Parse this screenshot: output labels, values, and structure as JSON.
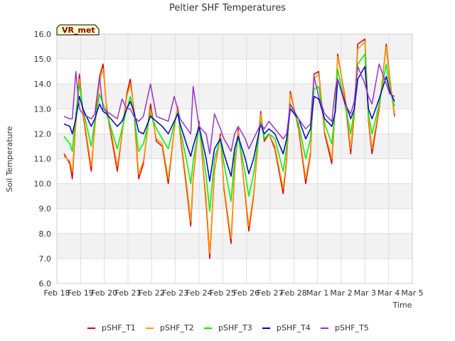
{
  "chart_data": {
    "type": "line",
    "title": "Peltier SHF Temperatures",
    "xlabel": "Time",
    "ylabel": "Soil Temperature",
    "badge": "VR_met",
    "xlim": [
      0,
      15
    ],
    "ylim": [
      6.0,
      16.0
    ],
    "x_ticks": [
      {
        "v": 0,
        "label": "Feb 18"
      },
      {
        "v": 1,
        "label": "Feb 19"
      },
      {
        "v": 2,
        "label": "Feb 20"
      },
      {
        "v": 3,
        "label": "Feb 21"
      },
      {
        "v": 4,
        "label": "Feb 22"
      },
      {
        "v": 5,
        "label": "Feb 23"
      },
      {
        "v": 6,
        "label": "Feb 24"
      },
      {
        "v": 7,
        "label": "Feb 25"
      },
      {
        "v": 8,
        "label": "Feb 26"
      },
      {
        "v": 9,
        "label": "Feb 27"
      },
      {
        "v": 10,
        "label": "Feb 28"
      },
      {
        "v": 11,
        "label": "Mar 1"
      },
      {
        "v": 12,
        "label": "Mar 2"
      },
      {
        "v": 13,
        "label": "Mar 3"
      },
      {
        "v": 14,
        "label": "Mar 4"
      },
      {
        "v": 15,
        "label": "Mar 5"
      }
    ],
    "y_ticks": [
      6.0,
      7.0,
      8.0,
      9.0,
      10.0,
      11.0,
      12.0,
      13.0,
      14.0,
      15.0,
      16.0
    ],
    "y_tick_labels": [
      "6.0",
      "7.0",
      "8.0",
      "9.0",
      "10.0",
      "11.0",
      "12.0",
      "13.0",
      "14.0",
      "15.0",
      "16.0"
    ],
    "grid": true,
    "legend_position": "bottom",
    "series": [
      {
        "name": "pSHF_T1",
        "color": "#dd0000",
        "x": [
          0.3,
          0.55,
          0.65,
          0.8,
          0.95,
          1.1,
          1.45,
          1.6,
          1.8,
          1.95,
          2.1,
          2.55,
          2.75,
          2.95,
          3.1,
          3.25,
          3.45,
          3.65,
          3.95,
          4.2,
          4.45,
          4.7,
          4.95,
          5.1,
          5.2,
          5.5,
          5.65,
          5.75,
          6.0,
          6.3,
          6.45,
          6.65,
          6.9,
          7.05,
          7.35,
          7.5,
          7.65,
          7.95,
          8.1,
          8.3,
          8.6,
          8.75,
          8.95,
          9.2,
          9.55,
          9.7,
          9.85,
          10.2,
          10.5,
          10.7,
          10.85,
          11.05,
          11.3,
          11.6,
          11.75,
          11.85,
          12.15,
          12.4,
          12.55,
          12.7,
          13.0,
          13.15,
          13.3,
          13.6,
          13.9,
          14.05,
          14.25
        ],
        "y": [
          11.2,
          10.8,
          10.2,
          12.5,
          14.4,
          12.8,
          10.5,
          12.3,
          14.3,
          14.8,
          13.0,
          10.5,
          12.0,
          13.6,
          14.2,
          13.0,
          10.2,
          10.8,
          13.2,
          11.7,
          11.5,
          10.0,
          12.2,
          13.1,
          12.0,
          9.6,
          8.3,
          10.2,
          12.5,
          9.2,
          7.0,
          10.5,
          12.0,
          9.8,
          7.6,
          10.5,
          12.2,
          9.5,
          8.1,
          9.5,
          12.9,
          11.7,
          12.0,
          11.4,
          9.6,
          11.0,
          13.7,
          12.2,
          10.0,
          11.2,
          14.4,
          14.5,
          12.0,
          10.8,
          13.2,
          15.2,
          13.5,
          11.2,
          12.8,
          15.6,
          15.8,
          12.5,
          11.2,
          13.0,
          15.6,
          14.2,
          12.7
        ]
      },
      {
        "name": "pSHF_T2",
        "color": "#ff9900",
        "x": [
          0.3,
          0.55,
          0.65,
          0.8,
          0.95,
          1.1,
          1.45,
          1.6,
          1.8,
          1.95,
          2.1,
          2.55,
          2.75,
          2.95,
          3.1,
          3.25,
          3.45,
          3.65,
          3.95,
          4.2,
          4.45,
          4.7,
          4.95,
          5.1,
          5.2,
          5.5,
          5.65,
          5.75,
          6.0,
          6.3,
          6.45,
          6.65,
          6.9,
          7.05,
          7.35,
          7.5,
          7.65,
          7.95,
          8.1,
          8.3,
          8.6,
          8.75,
          8.95,
          9.2,
          9.55,
          9.7,
          9.85,
          10.2,
          10.5,
          10.7,
          10.85,
          11.05,
          11.3,
          11.6,
          11.75,
          11.85,
          12.15,
          12.4,
          12.55,
          12.7,
          13.0,
          13.15,
          13.3,
          13.6,
          13.9,
          14.05,
          14.25
        ],
        "y": [
          11.1,
          10.9,
          10.5,
          12.4,
          14.2,
          12.9,
          10.7,
          12.2,
          14.1,
          14.6,
          13.1,
          10.7,
          12.0,
          13.5,
          14.0,
          13.1,
          10.4,
          10.9,
          13.0,
          11.8,
          11.6,
          10.2,
          12.2,
          13.1,
          12.1,
          9.8,
          8.5,
          10.3,
          12.4,
          9.4,
          7.2,
          10.5,
          11.9,
          9.9,
          7.8,
          10.5,
          12.1,
          9.6,
          8.3,
          9.6,
          12.8,
          11.8,
          12.0,
          11.5,
          9.8,
          11.1,
          13.6,
          12.3,
          10.2,
          11.3,
          14.2,
          14.4,
          12.1,
          11.0,
          13.2,
          15.1,
          13.6,
          11.4,
          12.9,
          15.4,
          15.7,
          12.6,
          11.4,
          13.1,
          15.5,
          14.1,
          12.8
        ]
      },
      {
        "name": "pSHF_T3",
        "color": "#00ee00",
        "x": [
          0.3,
          0.55,
          0.65,
          0.8,
          0.95,
          1.1,
          1.45,
          1.6,
          1.8,
          1.95,
          2.1,
          2.55,
          2.75,
          2.95,
          3.1,
          3.25,
          3.45,
          3.65,
          3.95,
          4.2,
          4.45,
          4.7,
          4.95,
          5.1,
          5.2,
          5.5,
          5.65,
          5.75,
          6.0,
          6.3,
          6.45,
          6.65,
          6.9,
          7.05,
          7.35,
          7.5,
          7.65,
          7.95,
          8.1,
          8.3,
          8.6,
          8.75,
          8.95,
          9.2,
          9.55,
          9.7,
          9.85,
          10.2,
          10.5,
          10.7,
          10.85,
          11.05,
          11.3,
          11.6,
          11.75,
          11.85,
          12.15,
          12.4,
          12.55,
          12.7,
          13.0,
          13.15,
          13.3,
          13.6,
          13.9,
          14.05,
          14.25
        ],
        "y": [
          11.9,
          11.6,
          11.3,
          12.8,
          14.0,
          13.0,
          11.5,
          12.5,
          13.6,
          13.2,
          12.8,
          11.4,
          12.2,
          13.0,
          13.5,
          12.8,
          11.3,
          11.6,
          12.8,
          12.2,
          11.8,
          11.4,
          12.4,
          12.9,
          12.2,
          10.8,
          10.0,
          10.9,
          12.3,
          10.3,
          8.9,
          11.0,
          11.8,
          10.8,
          9.3,
          11.0,
          11.9,
          10.4,
          9.5,
          10.4,
          12.5,
          11.8,
          12.0,
          11.8,
          10.5,
          11.5,
          13.2,
          12.4,
          11.0,
          11.8,
          13.8,
          13.9,
          12.4,
          11.6,
          13.0,
          14.6,
          13.2,
          12.0,
          13.0,
          14.8,
          15.2,
          12.8,
          12.0,
          13.2,
          14.8,
          13.8,
          13.1
        ]
      },
      {
        "name": "pSHF_T4",
        "color": "#0000cc",
        "x": [
          0.3,
          0.55,
          0.65,
          0.8,
          0.95,
          1.1,
          1.45,
          1.6,
          1.8,
          1.95,
          2.1,
          2.55,
          2.75,
          2.95,
          3.1,
          3.25,
          3.45,
          3.65,
          3.95,
          4.2,
          4.45,
          4.7,
          4.95,
          5.1,
          5.2,
          5.5,
          5.65,
          5.75,
          6.0,
          6.3,
          6.45,
          6.65,
          6.9,
          7.05,
          7.35,
          7.5,
          7.65,
          7.95,
          8.1,
          8.3,
          8.6,
          8.75,
          8.95,
          9.2,
          9.55,
          9.7,
          9.85,
          10.2,
          10.5,
          10.7,
          10.85,
          11.05,
          11.3,
          11.6,
          11.75,
          11.85,
          12.15,
          12.4,
          12.55,
          12.7,
          13.0,
          13.15,
          13.3,
          13.6,
          13.9,
          14.05,
          14.25
        ],
        "y": [
          12.4,
          12.3,
          12.0,
          12.6,
          13.5,
          13.0,
          12.3,
          12.6,
          13.2,
          12.9,
          12.8,
          12.3,
          12.5,
          13.0,
          13.3,
          12.9,
          12.1,
          12.0,
          12.7,
          12.5,
          12.3,
          12.0,
          12.5,
          12.8,
          12.4,
          11.5,
          11.1,
          11.5,
          12.3,
          11.0,
          10.1,
          11.4,
          11.8,
          11.2,
          10.3,
          11.4,
          11.9,
          11.0,
          10.4,
          11.0,
          12.4,
          12.0,
          12.2,
          12.0,
          11.2,
          11.8,
          13.0,
          12.6,
          11.8,
          12.2,
          13.5,
          13.4,
          12.6,
          12.3,
          12.9,
          14.2,
          13.3,
          12.6,
          13.0,
          14.2,
          14.7,
          13.0,
          12.6,
          13.4,
          14.3,
          13.7,
          13.3
        ]
      },
      {
        "name": "pSHF_T5",
        "color": "#9933cc",
        "x": [
          0.3,
          0.55,
          0.65,
          0.8,
          0.95,
          1.1,
          1.45,
          1.6,
          1.8,
          1.95,
          2.1,
          2.55,
          2.75,
          2.95,
          3.1,
          3.25,
          3.45,
          3.65,
          3.95,
          4.2,
          4.45,
          4.7,
          4.95,
          5.1,
          5.2,
          5.5,
          5.65,
          5.75,
          6.0,
          6.3,
          6.45,
          6.65,
          6.9,
          7.05,
          7.35,
          7.5,
          7.65,
          7.95,
          8.1,
          8.3,
          8.6,
          8.75,
          8.95,
          9.2,
          9.55,
          9.7,
          9.85,
          10.2,
          10.5,
          10.7,
          10.85,
          11.05,
          11.3,
          11.6,
          11.75,
          11.85,
          12.15,
          12.4,
          12.55,
          12.7,
          13.0,
          13.15,
          13.3,
          13.6,
          13.9,
          14.05,
          14.25
        ],
        "y": [
          12.7,
          12.6,
          12.6,
          14.5,
          13.0,
          12.8,
          12.6,
          12.8,
          14.3,
          13.0,
          12.9,
          12.6,
          13.4,
          13.0,
          13.0,
          12.7,
          12.5,
          12.7,
          14.0,
          12.7,
          12.6,
          12.5,
          13.5,
          13.0,
          12.6,
          12.2,
          12.0,
          13.9,
          12.3,
          12.0,
          11.2,
          12.8,
          12.2,
          11.8,
          11.3,
          12.0,
          12.3,
          11.8,
          11.4,
          11.8,
          12.4,
          12.2,
          12.5,
          12.2,
          11.8,
          12.0,
          13.2,
          12.6,
          12.2,
          12.4,
          14.3,
          13.5,
          12.8,
          12.5,
          13.8,
          14.2,
          13.2,
          12.8,
          13.3,
          14.7,
          14.0,
          13.5,
          13.2,
          14.8,
          14.0,
          13.6,
          13.5
        ]
      }
    ]
  }
}
